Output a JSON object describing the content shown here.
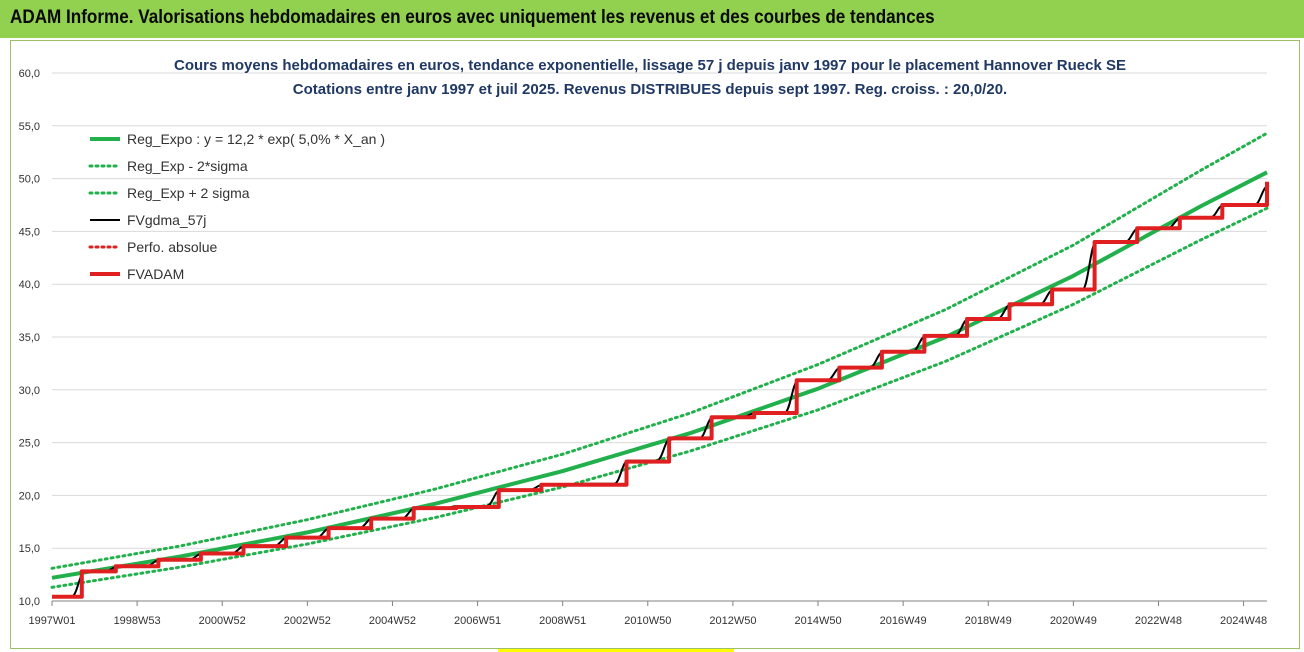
{
  "banner": {
    "title": "ADAM Informe. Valorisations hebdomadaires en euros avec uniquement les revenus et des courbes de tendances"
  },
  "chart_data": {
    "type": "line",
    "title": "Cours moyens hebdomadaires en euros, tendance exponentielle, lissage 57 j depuis janv 1997  pour le placement Hannover Rueck SE",
    "subtitle": "Cotations entre janv 1997 et juil 2025. Revenus DISTRIBUES depuis sept 1997. Reg. croiss. : 20,0/20.",
    "xlabel": "",
    "ylabel": "",
    "ylim": [
      10,
      60
    ],
    "xlim": [
      1997.0,
      2025.55
    ],
    "y_ticks": [
      "10,0",
      "15,0",
      "20,0",
      "25,0",
      "30,0",
      "35,0",
      "40,0",
      "45,0",
      "50,0",
      "55,0",
      "60,0"
    ],
    "x_ticks": [
      {
        "label": "1997W01",
        "x": 1997.0
      },
      {
        "label": "1998W53",
        "x": 1999.0
      },
      {
        "label": "2000W52",
        "x": 2001.0
      },
      {
        "label": "2002W52",
        "x": 2003.0
      },
      {
        "label": "2004W52",
        "x": 2005.0
      },
      {
        "label": "2006W51",
        "x": 2007.0
      },
      {
        "label": "2008W51",
        "x": 2009.0
      },
      {
        "label": "2010W50",
        "x": 2011.0
      },
      {
        "label": "2012W50",
        "x": 2013.0
      },
      {
        "label": "2014W50",
        "x": 2015.0
      },
      {
        "label": "2016W49",
        "x": 2017.0
      },
      {
        "label": "2018W49",
        "x": 2019.0
      },
      {
        "label": "2020W49",
        "x": 2021.0
      },
      {
        "label": "2022W48",
        "x": 2023.0
      },
      {
        "label": "2024W48",
        "x": 2025.0
      }
    ],
    "grid": true,
    "legend_position": "top-left",
    "series": [
      {
        "name": "Reg_Expo : y = 12,2 * exp( 5,0% *  X_an )",
        "color": "#21b04b",
        "style": "solid",
        "x": [
          1997.0,
          2000.0,
          2003.0,
          2006.0,
          2009.0,
          2012.0,
          2015.0,
          2018.0,
          2021.0,
          2024.0,
          2025.55
        ],
        "values": [
          12.2,
          14.2,
          16.5,
          19.2,
          22.3,
          25.9,
          30.1,
          35.0,
          40.8,
          47.4,
          50.6
        ]
      },
      {
        "name": "Reg_Exp - 2*sigma",
        "color": "#21b04b",
        "style": "dotted",
        "x": [
          1997.0,
          2000.0,
          2003.0,
          2006.0,
          2009.0,
          2012.0,
          2015.0,
          2018.0,
          2021.0,
          2024.0,
          2025.55
        ],
        "values": [
          11.3,
          13.2,
          15.4,
          17.9,
          20.8,
          24.2,
          28.1,
          32.7,
          38.1,
          44.2,
          47.2
        ]
      },
      {
        "name": "Reg_Exp + 2 sigma",
        "color": "#21b04b",
        "style": "dotted",
        "x": [
          1997.0,
          2000.0,
          2003.0,
          2006.0,
          2009.0,
          2012.0,
          2015.0,
          2018.0,
          2021.0,
          2024.0,
          2025.55
        ],
        "values": [
          13.1,
          15.2,
          17.7,
          20.6,
          23.9,
          27.8,
          32.4,
          37.6,
          43.7,
          50.8,
          54.3
        ]
      },
      {
        "name": "FVgdma_57j",
        "color": "#000000",
        "style": "solid",
        "x": [
          1997.0,
          1997.7,
          1998.5,
          1999.5,
          2000.5,
          2001.5,
          2002.5,
          2003.5,
          2004.5,
          2005.5,
          2006.5,
          2007.5,
          2008.5,
          2009.5,
          2010.5,
          2011.5,
          2012.5,
          2013.5,
          2014.5,
          2015.5,
          2016.5,
          2017.5,
          2018.5,
          2019.5,
          2020.5,
          2021.5,
          2022.5,
          2023.5,
          2024.5,
          2025.55
        ],
        "values": [
          10.4,
          12.8,
          13.3,
          13.9,
          14.5,
          15.2,
          16.0,
          16.9,
          17.8,
          18.8,
          19.0,
          20.5,
          21.0,
          21.1,
          23.3,
          25.4,
          27.4,
          27.8,
          30.9,
          32.1,
          33.6,
          35.1,
          36.7,
          38.1,
          39.5,
          44.0,
          45.3,
          46.3,
          47.5,
          49.3
        ]
      },
      {
        "name": "Perfo. absolue",
        "color": "#e02020",
        "style": "dotted",
        "x": [],
        "values": []
      },
      {
        "name": "FVADAM",
        "color": "#e02020",
        "style": "step",
        "x": [
          1997.0,
          1997.7,
          1998.5,
          1999.5,
          2000.5,
          2001.5,
          2002.5,
          2003.5,
          2004.5,
          2005.5,
          2006.5,
          2007.5,
          2008.5,
          2009.5,
          2010.5,
          2011.5,
          2012.5,
          2013.5,
          2014.5,
          2015.5,
          2016.5,
          2017.5,
          2018.5,
          2019.5,
          2020.5,
          2021.5,
          2022.5,
          2023.5,
          2024.5,
          2025.55
        ],
        "values": [
          10.4,
          12.8,
          13.3,
          13.9,
          14.5,
          15.2,
          16.0,
          16.9,
          17.8,
          18.8,
          18.9,
          20.5,
          21.0,
          21.0,
          23.2,
          25.4,
          27.4,
          27.8,
          30.9,
          32.1,
          33.6,
          35.1,
          36.7,
          38.1,
          39.5,
          44.0,
          45.3,
          46.3,
          47.5,
          49.7
        ]
      }
    ]
  }
}
